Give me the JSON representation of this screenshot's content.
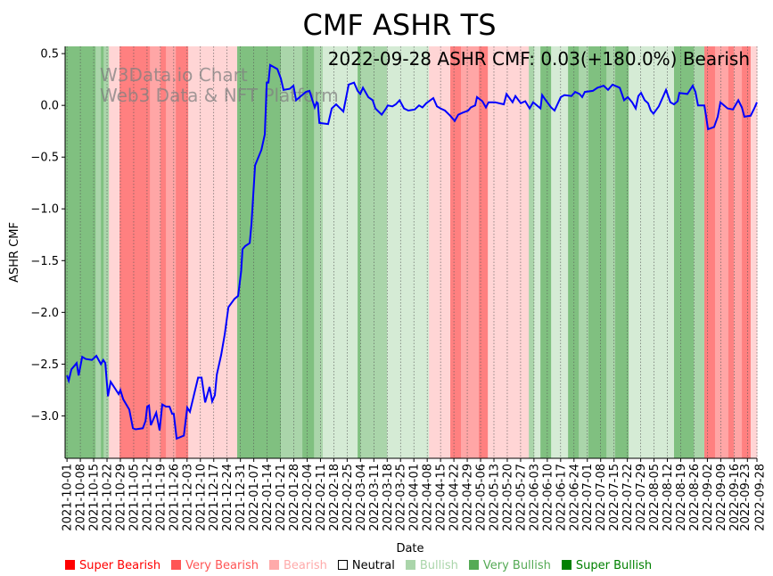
{
  "chart_data": {
    "type": "line",
    "title": "CMF ASHR TS",
    "annotation": "2022-09-28 ASHR CMF: 0.03(+180.0%) Bearish",
    "watermark": [
      "W3Data.io Chart",
      "Web3 Data & NFT Platform"
    ],
    "xlabel": "Date",
    "ylabel": "ASHR CMF",
    "xlim_days": [
      -1,
      362
    ],
    "ylim": [
      -3.41,
      0.57
    ],
    "yticks": [
      0.5,
      0.0,
      -0.5,
      -1.0,
      -1.5,
      -2.0,
      -2.5,
      -3.0
    ],
    "ytick_labels": [
      "0.5",
      "0.0",
      "−0.5",
      "−1.0",
      "−1.5",
      "−2.0",
      "−2.5",
      "−3.0"
    ],
    "xticks_days": [
      0,
      7,
      14,
      21,
      28,
      35,
      42,
      49,
      56,
      63,
      70,
      77,
      84,
      91,
      98,
      105,
      112,
      119,
      126,
      133,
      140,
      147,
      154,
      161,
      168,
      175,
      182,
      189,
      196,
      203,
      210,
      217,
      224,
      231,
      238,
      245,
      252,
      259,
      266,
      273,
      280,
      287,
      294,
      301,
      308,
      315,
      322,
      329,
      336,
      343,
      350,
      357,
      362
    ],
    "xtick_labels": [
      "2021-10-01",
      "2021-10-08",
      "2021-10-15",
      "2021-10-22",
      "2021-10-29",
      "2021-11-05",
      "2021-11-12",
      "2021-11-19",
      "2021-11-26",
      "2021-12-03",
      "2021-12-10",
      "2021-12-17",
      "2021-12-24",
      "2021-12-31",
      "2022-01-07",
      "2022-01-14",
      "2022-01-21",
      "2022-01-28",
      "2022-02-04",
      "2022-02-11",
      "2022-02-18",
      "2022-02-25",
      "2022-03-04",
      "2022-03-11",
      "2022-03-18",
      "2022-03-25",
      "2022-04-01",
      "2022-04-08",
      "2022-04-15",
      "2022-04-22",
      "2022-04-29",
      "2022-05-06",
      "2022-05-13",
      "2022-05-20",
      "2022-05-27",
      "2022-06-03",
      "2022-06-10",
      "2022-06-17",
      "2022-06-24",
      "2022-07-01",
      "2022-07-08",
      "2022-07-15",
      "2022-07-22",
      "2022-07-29",
      "2022-08-05",
      "2022-08-12",
      "2022-08-19",
      "2022-08-26",
      "2022-09-02",
      "2022-09-09",
      "2022-09-16",
      "2022-09-23",
      "2022-09-28"
    ],
    "series": [
      {
        "name": "ASHR CMF",
        "color": "#0000ff",
        "points": [
          [
            0,
            -2.61
          ],
          [
            0.9,
            -2.66
          ],
          [
            2.3,
            -2.55
          ],
          [
            5.1,
            -2.49
          ],
          [
            6.1,
            -2.61
          ],
          [
            8,
            -2.43
          ],
          [
            9.8,
            -2.45
          ],
          [
            13.1,
            -2.46
          ],
          [
            15.4,
            -2.42
          ],
          [
            17.8,
            -2.5
          ],
          [
            19,
            -2.46
          ],
          [
            20.1,
            -2.49
          ],
          [
            21.5,
            -2.81
          ],
          [
            22.9,
            -2.67
          ],
          [
            27.1,
            -2.79
          ],
          [
            28,
            -2.75
          ],
          [
            29.5,
            -2.84
          ],
          [
            32.7,
            -2.94
          ],
          [
            34.6,
            -3.12
          ],
          [
            36,
            -3.13
          ],
          [
            39.8,
            -3.12
          ],
          [
            41.2,
            -3.05
          ],
          [
            42.1,
            -2.91
          ],
          [
            43,
            -2.9
          ],
          [
            44,
            -3.09
          ],
          [
            46.8,
            -2.97
          ],
          [
            48.6,
            -3.14
          ],
          [
            50,
            -2.89
          ],
          [
            51.9,
            -2.91
          ],
          [
            53.8,
            -2.91
          ],
          [
            55.2,
            -2.98
          ],
          [
            56,
            -2.98
          ],
          [
            57.5,
            -3.22
          ],
          [
            61.3,
            -3.19
          ],
          [
            63.1,
            -2.92
          ],
          [
            64.5,
            -2.96
          ],
          [
            68.8,
            -2.63
          ],
          [
            70.6,
            -2.63
          ],
          [
            72.5,
            -2.87
          ],
          [
            74.8,
            -2.72
          ],
          [
            76.2,
            -2.86
          ],
          [
            77.6,
            -2.8
          ],
          [
            78.6,
            -2.6
          ],
          [
            80.9,
            -2.41
          ],
          [
            82.8,
            -2.21
          ],
          [
            84.7,
            -1.95
          ],
          [
            87.9,
            -1.87
          ],
          [
            89.8,
            -1.84
          ],
          [
            91.4,
            -1.6
          ],
          [
            92.1,
            -1.39
          ],
          [
            93.5,
            -1.36
          ],
          [
            95.9,
            -1.33
          ],
          [
            96.8,
            -1.14
          ],
          [
            98.7,
            -0.58
          ],
          [
            102,
            -0.43
          ],
          [
            103.8,
            -0.28
          ],
          [
            104.8,
            0.22
          ],
          [
            105.7,
            0.22
          ],
          [
            106.6,
            0.39
          ],
          [
            110.4,
            0.35
          ],
          [
            112.2,
            0.26
          ],
          [
            113.6,
            0.15
          ],
          [
            116.9,
            0.16
          ],
          [
            118.8,
            0.19
          ],
          [
            120.2,
            0.05
          ],
          [
            125.3,
            0.13
          ],
          [
            127.2,
            0.14
          ],
          [
            130,
            -0.02
          ],
          [
            131,
            0.03
          ],
          [
            131.6,
            0.02
          ],
          [
            132.4,
            -0.17
          ],
          [
            137,
            -0.18
          ],
          [
            138.9,
            -0.03
          ],
          [
            141.2,
            0.01
          ],
          [
            145,
            -0.06
          ],
          [
            147.8,
            0.2
          ],
          [
            150.6,
            0.22
          ],
          [
            152.5,
            0.14
          ],
          [
            153.9,
            0.11
          ],
          [
            155.3,
            0.17
          ],
          [
            158.1,
            0.08
          ],
          [
            160.4,
            0.05
          ],
          [
            161.8,
            -0.03
          ],
          [
            165.1,
            -0.09
          ],
          [
            167.4,
            -0.03
          ],
          [
            168.3,
            0.0
          ],
          [
            170.7,
            -0.01
          ],
          [
            172.5,
            0.01
          ],
          [
            174.5,
            0.05
          ],
          [
            176.8,
            -0.03
          ],
          [
            179.1,
            -0.05
          ],
          [
            182.4,
            -0.04
          ],
          [
            184.7,
            0.0
          ],
          [
            186.5,
            -0.02
          ],
          [
            188.5,
            0.02
          ],
          [
            192.2,
            0.07
          ],
          [
            194.1,
            -0.01
          ],
          [
            196,
            -0.03
          ],
          [
            198.3,
            -0.05
          ],
          [
            201.1,
            -0.1
          ],
          [
            203.4,
            -0.15
          ],
          [
            205.3,
            -0.09
          ],
          [
            207.7,
            -0.07
          ],
          [
            210.5,
            -0.05
          ],
          [
            211.9,
            -0.02
          ],
          [
            214.2,
            0.0
          ],
          [
            215.1,
            0.08
          ],
          [
            217.9,
            0.04
          ],
          [
            219.8,
            -0.02
          ],
          [
            221.2,
            0.03
          ],
          [
            224.5,
            0.03
          ],
          [
            229.2,
            0.01
          ],
          [
            230.6,
            0.11
          ],
          [
            233.8,
            0.03
          ],
          [
            235.3,
            0.09
          ],
          [
            238.1,
            0.02
          ],
          [
            240.4,
            0.04
          ],
          [
            242.7,
            -0.03
          ],
          [
            244.6,
            0.03
          ],
          [
            248.4,
            -0.03
          ],
          [
            249.3,
            0.1
          ],
          [
            251.2,
            0.05
          ],
          [
            254,
            -0.02
          ],
          [
            255.8,
            -0.05
          ],
          [
            259.1,
            0.08
          ],
          [
            261,
            0.1
          ],
          [
            264.7,
            0.09
          ],
          [
            266.6,
            0.13
          ],
          [
            268.9,
            0.11
          ],
          [
            270.3,
            0.08
          ],
          [
            271.7,
            0.13
          ],
          [
            275.9,
            0.14
          ],
          [
            278.3,
            0.17
          ],
          [
            281.6,
            0.19
          ],
          [
            283.9,
            0.15
          ],
          [
            286.2,
            0.2
          ],
          [
            290,
            0.17
          ],
          [
            292.3,
            0.05
          ],
          [
            294.2,
            0.08
          ],
          [
            296.5,
            0.03
          ],
          [
            298.4,
            -0.03
          ],
          [
            299.8,
            0.09
          ],
          [
            301.2,
            0.12
          ],
          [
            303.1,
            0.05
          ],
          [
            304.9,
            0.02
          ],
          [
            306.3,
            -0.05
          ],
          [
            307.7,
            -0.08
          ],
          [
            310.5,
            -0.01
          ],
          [
            312.4,
            0.07
          ],
          [
            314.3,
            0.15
          ],
          [
            316.6,
            0.03
          ],
          [
            318.5,
            0.01
          ],
          [
            320.4,
            0.04
          ],
          [
            321.3,
            0.12
          ],
          [
            325.5,
            0.11
          ],
          [
            328.3,
            0.19
          ],
          [
            329.7,
            0.13
          ],
          [
            331.1,
            0.0
          ],
          [
            334.4,
            0.0
          ],
          [
            335.3,
            -0.1
          ],
          [
            336.3,
            -0.23
          ],
          [
            339.5,
            -0.21
          ],
          [
            341.4,
            -0.11
          ],
          [
            342.8,
            0.03
          ],
          [
            346.6,
            -0.03
          ],
          [
            349.4,
            -0.04
          ],
          [
            352.2,
            0.05
          ],
          [
            354.1,
            -0.02
          ],
          [
            355.4,
            -0.11
          ],
          [
            358.7,
            -0.1
          ],
          [
            360.6,
            -0.03
          ],
          [
            362,
            0.03
          ]
        ]
      }
    ],
    "regimes": {
      "colors": {
        "super_bearish": "#ff8080",
        "very_bearish": "#ffa6a6",
        "bearish": "#ffd5d5",
        "bullish": "#d5ebd5",
        "very_bullish": "#aad5aa",
        "super_bullish": "#80c080"
      },
      "bands": [
        [
          -1,
          15,
          "super_bullish"
        ],
        [
          15,
          17.8,
          "very_bullish"
        ],
        [
          17.8,
          19.2,
          "super_bullish"
        ],
        [
          19.2,
          22,
          "very_bullish"
        ],
        [
          22,
          27.6,
          "bearish"
        ],
        [
          27.6,
          43.5,
          "super_bearish"
        ],
        [
          43.5,
          49.1,
          "very_bearish"
        ],
        [
          49.1,
          51.9,
          "super_bearish"
        ],
        [
          51.9,
          57.1,
          "very_bearish"
        ],
        [
          57.1,
          63.6,
          "super_bearish"
        ],
        [
          63.6,
          89.3,
          "bearish"
        ],
        [
          89.3,
          112.2,
          "super_bullish"
        ],
        [
          112.2,
          123.5,
          "very_bullish"
        ],
        [
          123.5,
          129.6,
          "super_bullish"
        ],
        [
          129.6,
          134.2,
          "very_bullish"
        ],
        [
          134.2,
          152.5,
          "bullish"
        ],
        [
          152.5,
          153.9,
          "super_bullish"
        ],
        [
          153.9,
          167.9,
          "very_bullish"
        ],
        [
          167.9,
          189.9,
          "bullish"
        ],
        [
          189.9,
          201.1,
          "bearish"
        ],
        [
          201.1,
          206.7,
          "super_bearish"
        ],
        [
          206.7,
          216.1,
          "very_bearish"
        ],
        [
          216.1,
          220.8,
          "super_bearish"
        ],
        [
          220.8,
          242.3,
          "bearish"
        ],
        [
          242.3,
          245.1,
          "very_bullish"
        ],
        [
          245.1,
          248.4,
          "bullish"
        ],
        [
          248.4,
          254,
          "super_bullish"
        ],
        [
          254,
          262.9,
          "bullish"
        ],
        [
          262.9,
          268.5,
          "super_bullish"
        ],
        [
          268.5,
          273.6,
          "very_bullish"
        ],
        [
          273.6,
          283,
          "super_bullish"
        ],
        [
          283,
          287.6,
          "very_bullish"
        ],
        [
          287.6,
          294.7,
          "super_bullish"
        ],
        [
          294.7,
          318.5,
          "bullish"
        ],
        [
          318.5,
          328.8,
          "super_bullish"
        ],
        [
          328.8,
          334.4,
          "very_bullish"
        ],
        [
          334.4,
          340,
          "super_bearish"
        ],
        [
          340,
          347,
          "very_bearish"
        ],
        [
          347,
          349.8,
          "super_bearish"
        ],
        [
          349.8,
          354.1,
          "very_bearish"
        ],
        [
          354.1,
          358.7,
          "super_bearish"
        ],
        [
          358.7,
          362,
          "bearish"
        ]
      ]
    },
    "legend": {
      "placement": "bottom",
      "items": [
        {
          "label": "Super Bearish",
          "color": "#ff0000"
        },
        {
          "label": "Very Bearish",
          "color": "#ff5555"
        },
        {
          "label": "Bearish",
          "color": "#ffaaaa"
        },
        {
          "label": "Neutral",
          "color": "#000000"
        },
        {
          "label": "Bullish",
          "color": "#aad5aa"
        },
        {
          "label": "Very Bullish",
          "color": "#55aa55"
        },
        {
          "label": "Super Bullish",
          "color": "#008000"
        }
      ]
    }
  }
}
